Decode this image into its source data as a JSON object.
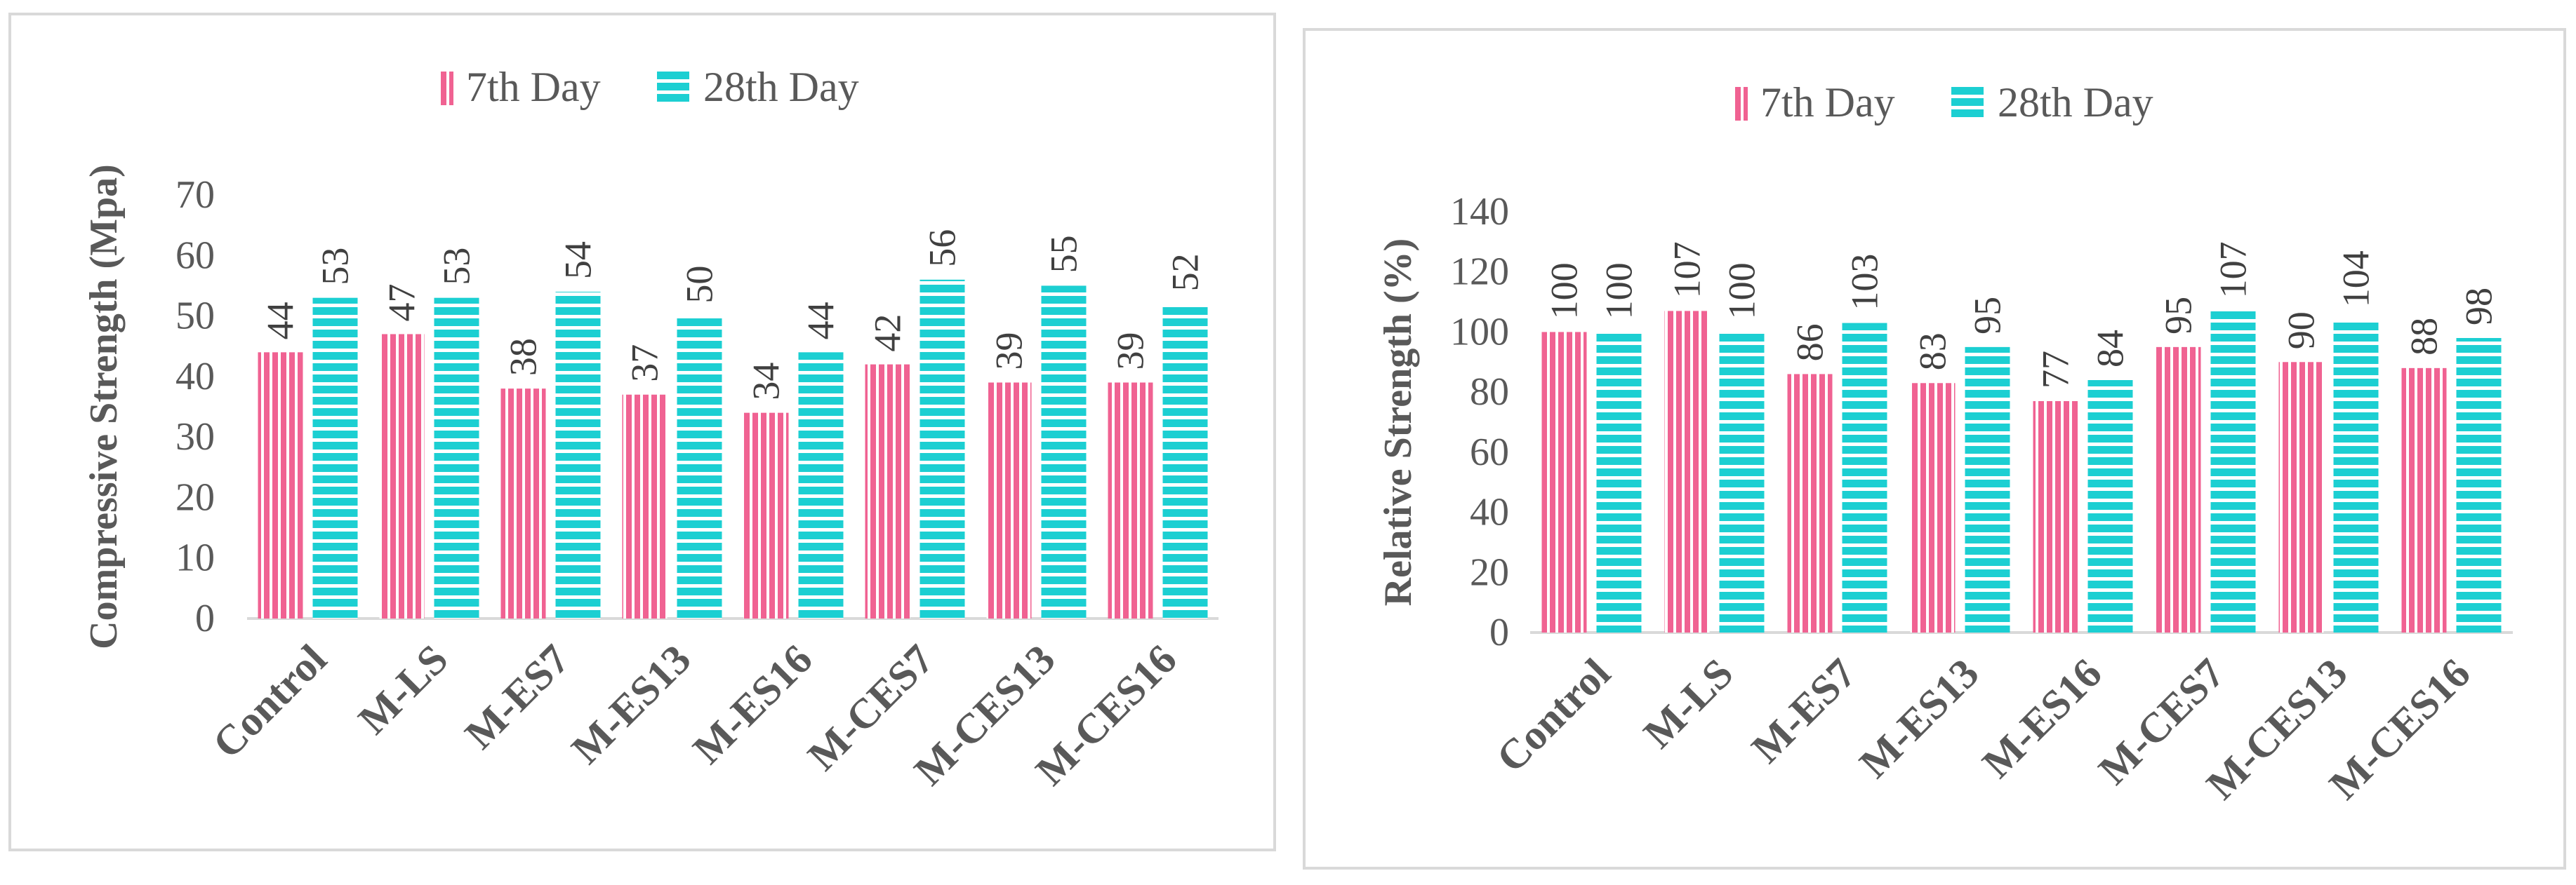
{
  "colors": {
    "day7": "#f06292",
    "day28": "#1ccfd2",
    "axis": "#d9d9d9",
    "text": "#595959"
  },
  "chart_data": [
    {
      "type": "bar",
      "categories": [
        "Control",
        "M-LS",
        "M-ES7",
        "M-ES13",
        "M-ES16",
        "M-CES7",
        "M-CES13",
        "M-CES16"
      ],
      "series": [
        {
          "name": "7th Day",
          "values": [
            44,
            47,
            38,
            37,
            34,
            42,
            39,
            39
          ]
        },
        {
          "name": "28th Day",
          "values": [
            53,
            53,
            54,
            50,
            44,
            56,
            55,
            52
          ]
        }
      ],
      "xlabel": "",
      "ylabel": "Compressive Strength (Mpa)",
      "ylim": [
        0,
        70
      ],
      "yticks": [
        "0",
        "10",
        "20",
        "30",
        "40",
        "50",
        "60",
        "70"
      ],
      "legend_position": "top",
      "grid": false,
      "data_labels": true
    },
    {
      "type": "bar",
      "categories": [
        "Control",
        "M-LS",
        "M-ES7",
        "M-ES13",
        "M-ES16",
        "M-CES7",
        "M-CES13",
        "M-CES16"
      ],
      "series": [
        {
          "name": "7th Day",
          "values": [
            100,
            107,
            86,
            83,
            77,
            95,
            90,
            88
          ]
        },
        {
          "name": "28th Day",
          "values": [
            100,
            100,
            103,
            95,
            84,
            107,
            104,
            98
          ]
        }
      ],
      "xlabel": "",
      "ylabel": "Relative Strength (%)",
      "ylim": [
        0,
        140
      ],
      "yticks": [
        "0",
        "20",
        "40",
        "60",
        "80",
        "100",
        "120",
        "140"
      ],
      "legend_position": "top",
      "grid": false,
      "data_labels": true
    }
  ]
}
